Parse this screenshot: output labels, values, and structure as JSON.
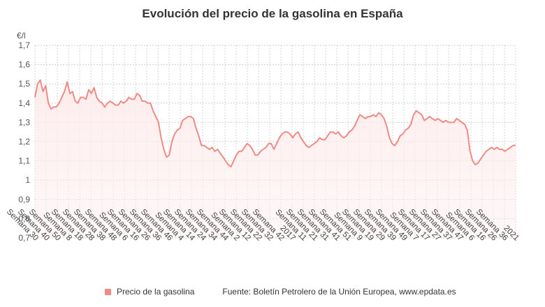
{
  "chart_data": {
    "type": "area",
    "title": "Evolución del precio de la gasolina en España",
    "ylabel": "€/l",
    "ylim": [
      0.7,
      1.7
    ],
    "yticks": [
      "0,7",
      "0,8",
      "0,9",
      "1",
      "1,1",
      "1,2",
      "1,3",
      "1,4",
      "1,5",
      "1,6",
      "1,7"
    ],
    "grid": true,
    "line_color": "#ef8a84",
    "fill_color": "#fdecec",
    "xtick_labels": [
      "Semana 30",
      "Semana 40",
      "Semana 50",
      "Semana 8",
      "Semana 18",
      "Semana 28",
      "Semana 38",
      "Semana 48",
      "Semana 6",
      "Semana 16",
      "Semana 26",
      "Semana 36",
      "Semana 46",
      "Semana 4",
      "Semana 14",
      "Semana 24",
      "Semana 34",
      "Semana 44",
      "Semana 2",
      "Semana 12",
      "Semana 22",
      "Semana 32",
      "Semana 42",
      "2017",
      "Semana 11",
      "Semana 21",
      "Semana 31",
      "Semana 41",
      "Semana 51",
      "Semana 9",
      "Semana 19",
      "Semana 29",
      "Semana 39",
      "Semana 49",
      "Semana 7",
      "Semana 17",
      "Semana 27",
      "Semana 37",
      "Semana 47",
      "Semana 6",
      "Semana 16",
      "Semana 26",
      "Semana 36",
      "2021"
    ],
    "series": [
      {
        "name": "Precio de la gasolina",
        "values": [
          1.43,
          1.5,
          1.52,
          1.46,
          1.49,
          1.4,
          1.37,
          1.38,
          1.38,
          1.4,
          1.43,
          1.46,
          1.51,
          1.45,
          1.46,
          1.41,
          1.4,
          1.43,
          1.43,
          1.42,
          1.47,
          1.45,
          1.48,
          1.43,
          1.41,
          1.4,
          1.38,
          1.4,
          1.41,
          1.4,
          1.39,
          1.39,
          1.41,
          1.4,
          1.41,
          1.43,
          1.42,
          1.42,
          1.45,
          1.44,
          1.41,
          1.41,
          1.4,
          1.4,
          1.36,
          1.33,
          1.3,
          1.22,
          1.16,
          1.12,
          1.13,
          1.2,
          1.24,
          1.26,
          1.27,
          1.31,
          1.32,
          1.33,
          1.33,
          1.32,
          1.27,
          1.23,
          1.18,
          1.18,
          1.17,
          1.16,
          1.17,
          1.15,
          1.16,
          1.14,
          1.12,
          1.1,
          1.08,
          1.07,
          1.1,
          1.13,
          1.15,
          1.15,
          1.17,
          1.19,
          1.18,
          1.16,
          1.13,
          1.13,
          1.15,
          1.16,
          1.17,
          1.19,
          1.19,
          1.16,
          1.19,
          1.22,
          1.24,
          1.25,
          1.25,
          1.24,
          1.22,
          1.24,
          1.25,
          1.22,
          1.2,
          1.18,
          1.17,
          1.18,
          1.19,
          1.2,
          1.22,
          1.21,
          1.21,
          1.23,
          1.25,
          1.25,
          1.24,
          1.25,
          1.23,
          1.22,
          1.23,
          1.25,
          1.26,
          1.28,
          1.31,
          1.34,
          1.33,
          1.32,
          1.33,
          1.33,
          1.34,
          1.33,
          1.35,
          1.34,
          1.32,
          1.28,
          1.22,
          1.19,
          1.18,
          1.2,
          1.23,
          1.24,
          1.26,
          1.27,
          1.29,
          1.34,
          1.36,
          1.35,
          1.34,
          1.31,
          1.32,
          1.33,
          1.32,
          1.31,
          1.32,
          1.31,
          1.3,
          1.31,
          1.3,
          1.3,
          1.3,
          1.32,
          1.31,
          1.3,
          1.29,
          1.26,
          1.15,
          1.1,
          1.08,
          1.09,
          1.11,
          1.13,
          1.15,
          1.16,
          1.17,
          1.16,
          1.17,
          1.16,
          1.16,
          1.15,
          1.16,
          1.17,
          1.18,
          1.18
        ]
      }
    ],
    "legend": "bottom-left",
    "source": "Fuente: Boletín Petrolero de la Unión Europea, www.epdata.es"
  }
}
